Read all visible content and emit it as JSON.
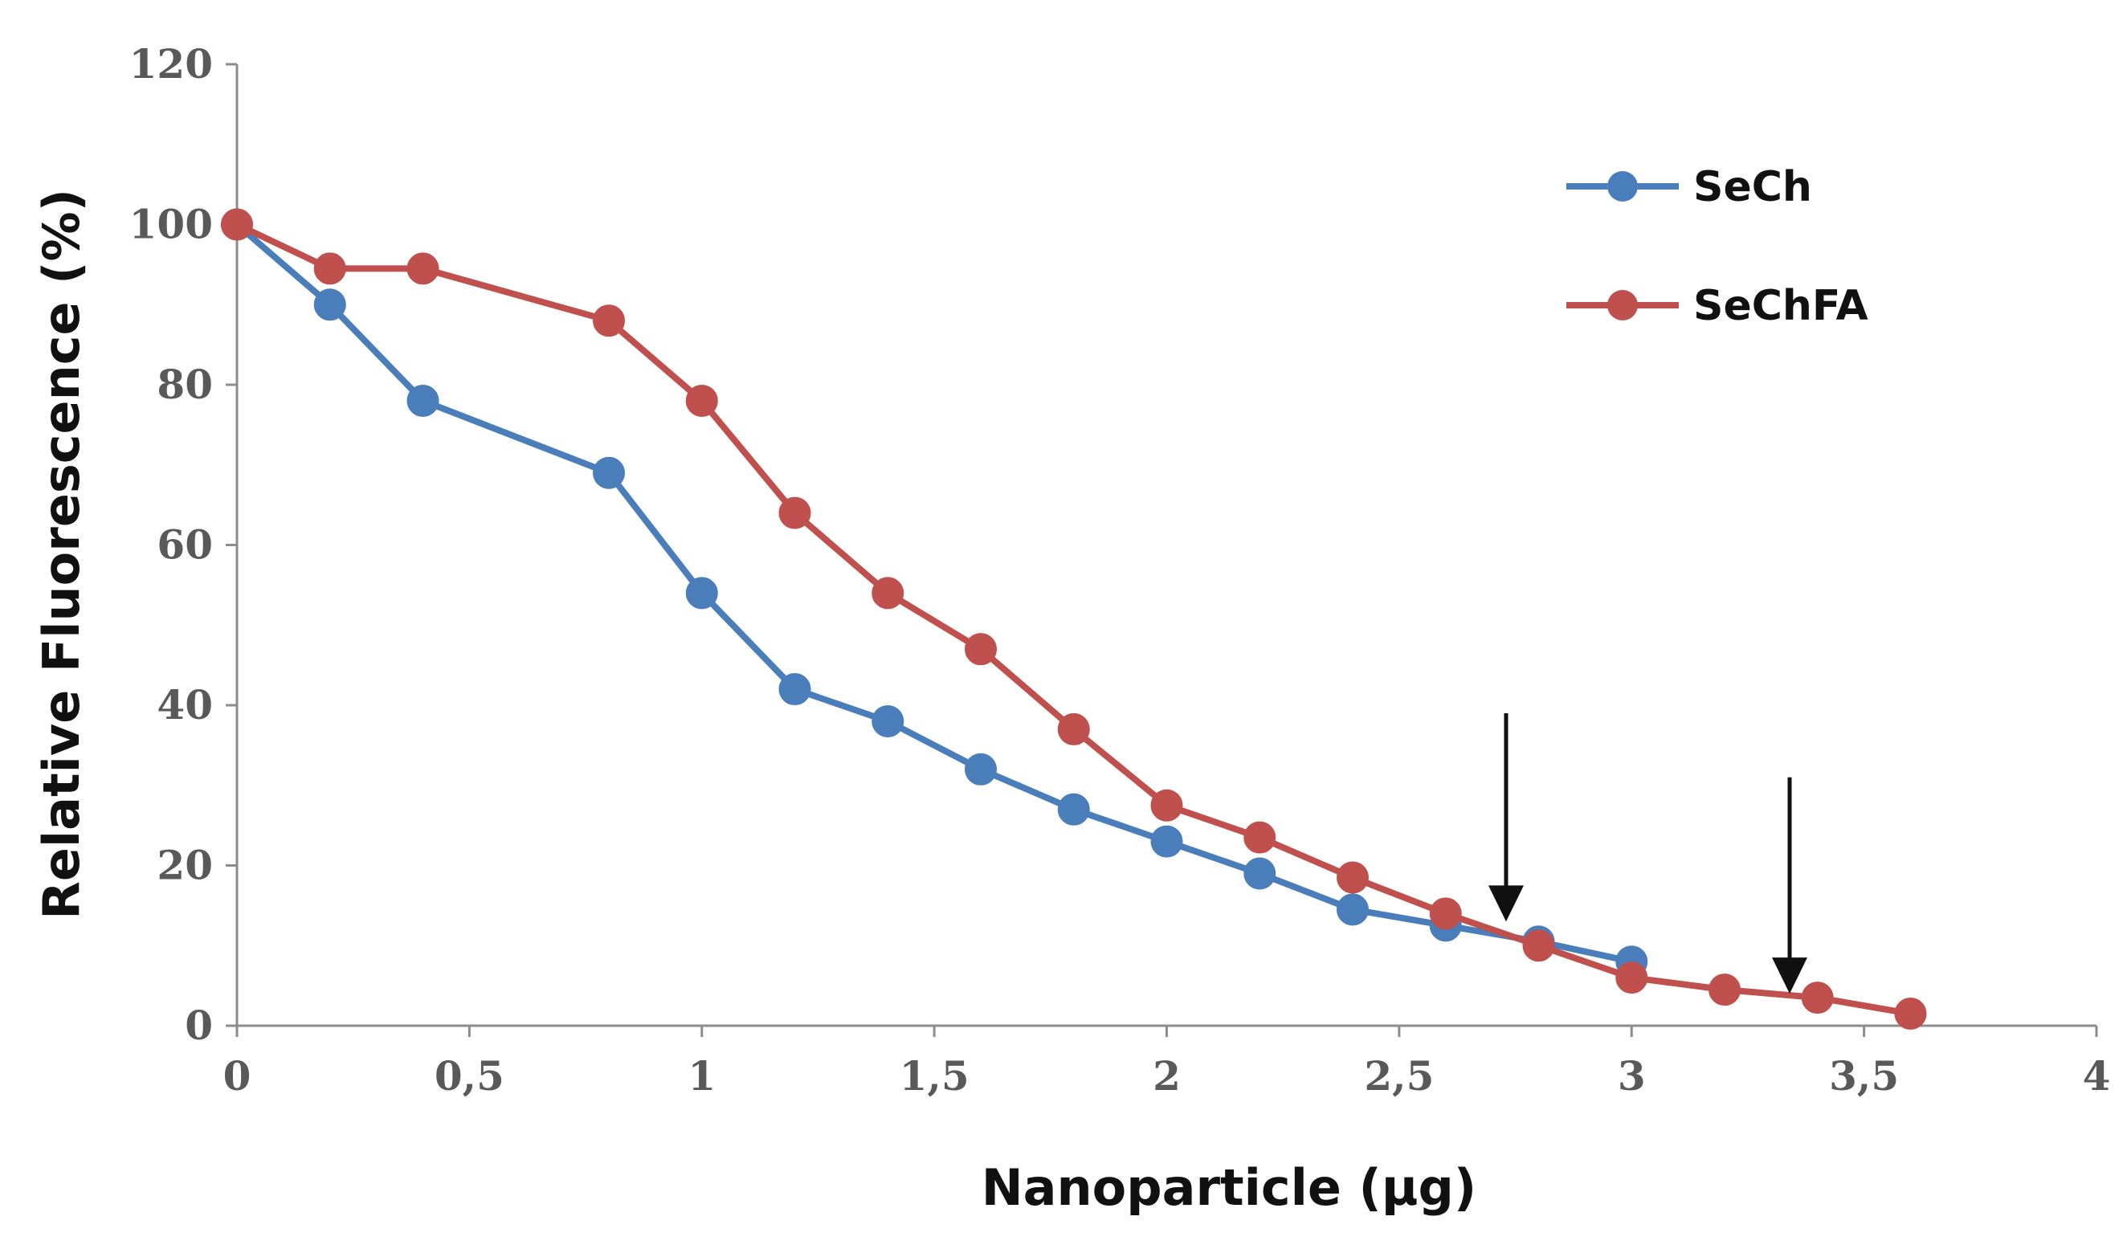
{
  "chart_data": {
    "type": "line",
    "title": "",
    "xlabel": "Nanoparticle (µg)",
    "ylabel": "Relative Fluorescence (%)",
    "xlim": [
      0,
      4
    ],
    "ylim": [
      0,
      120
    ],
    "x_ticks": [
      0,
      0.5,
      1,
      1.5,
      2,
      2.5,
      3,
      3.5,
      4
    ],
    "x_tick_labels": [
      "0",
      "0,5",
      "1",
      "1,5",
      "2",
      "2,5",
      "3",
      "3,5",
      "4"
    ],
    "y_ticks": [
      0,
      20,
      40,
      60,
      80,
      100,
      120
    ],
    "y_tick_labels": [
      "0",
      "20",
      "40",
      "60",
      "80",
      "100",
      "120"
    ],
    "grid": false,
    "legend_position": "top-right",
    "series": [
      {
        "name": "SeCh",
        "color": "#4a7ebb",
        "x": [
          0,
          0.2,
          0.4,
          0.8,
          1.0,
          1.2,
          1.4,
          1.6,
          1.8,
          2.0,
          2.2,
          2.4,
          2.6,
          2.8,
          3.0
        ],
        "y": [
          100,
          90,
          78,
          69,
          54,
          42,
          38,
          32,
          27,
          23,
          19,
          14.5,
          12.5,
          10.5,
          8
        ]
      },
      {
        "name": "SeChFA",
        "color": "#c0504d",
        "x": [
          0,
          0.2,
          0.4,
          0.8,
          1.0,
          1.2,
          1.4,
          1.6,
          1.8,
          2.0,
          2.2,
          2.4,
          2.6,
          2.8,
          3.0,
          3.2,
          3.4,
          3.6
        ],
        "y": [
          100,
          94.5,
          94.5,
          88,
          78,
          64,
          54,
          47,
          37,
          27.5,
          23.5,
          18.5,
          14,
          10,
          6,
          4.5,
          3.5,
          1.5
        ]
      }
    ],
    "annotations": [
      {
        "type": "arrow",
        "x": 2.73,
        "y_from": 39,
        "y_to": 13
      },
      {
        "type": "arrow",
        "x": 3.34,
        "y_from": 31,
        "y_to": 4
      }
    ]
  }
}
